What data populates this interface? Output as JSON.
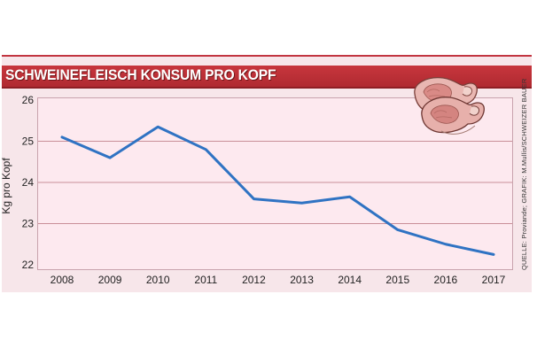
{
  "chart_data": {
    "type": "line",
    "title": "SCHWEINEFLEISCH KONSUM PRO KOPF",
    "ylabel": "Kg pro Kopf",
    "xlabel": "",
    "categories": [
      "2008",
      "2009",
      "2010",
      "2011",
      "2012",
      "2013",
      "2014",
      "2015",
      "2016",
      "2017"
    ],
    "series": [
      {
        "values": [
          25.1,
          24.6,
          25.35,
          24.8,
          23.6,
          23.5,
          23.65,
          22.85,
          22.5,
          22.25
        ],
        "color": "#2f73c3"
      }
    ],
    "ylim": [
      22,
      26
    ],
    "yticks": [
      22,
      23,
      24,
      25,
      26
    ],
    "grid": true,
    "gridline_color": "#c98f98",
    "source": "QUELLE: Proviande; GRAFIK: M.Mullis/SCHWEIZER BAUER"
  },
  "illustration": "pork-chops-icon",
  "colors": {
    "title_bar": "#c23540",
    "panel": "#f7e6ea",
    "plot_bg": "#fde9ef",
    "line": "#2f73c3"
  }
}
